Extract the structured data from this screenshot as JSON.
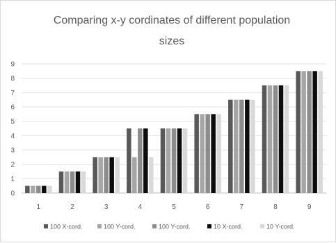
{
  "chart_data": {
    "type": "bar",
    "title_line1": "Comparing x-y cordinates of different population",
    "title_line2": "sizes",
    "categories": [
      "1",
      "2",
      "3",
      "4",
      "5",
      "6",
      "7",
      "8",
      "9"
    ],
    "ylim": [
      0,
      9
    ],
    "yticks": [
      "0",
      "1",
      "2",
      "3",
      "4",
      "5",
      "6",
      "7",
      "8",
      "9"
    ],
    "grid": true,
    "legend_position": "bottom",
    "series": [
      {
        "name": "100 X-cord.",
        "color": "#595959",
        "values": [
          0.5,
          1.5,
          2.5,
          4.5,
          4.5,
          5.5,
          6.5,
          7.5,
          8.5
        ]
      },
      {
        "name": "100 Y-cord.",
        "color": "#a6a6a6",
        "values": [
          0.5,
          1.5,
          2.5,
          2.5,
          4.5,
          5.5,
          6.5,
          7.5,
          8.5
        ]
      },
      {
        "name": "100 Y-cord.",
        "color": "#8c8c8c",
        "values": [
          0.5,
          1.5,
          2.5,
          4.5,
          4.5,
          5.5,
          6.5,
          7.5,
          8.5
        ]
      },
      {
        "name": "10 X-cord.",
        "color": "#0d0d0d",
        "values": [
          0.5,
          1.5,
          2.5,
          4.5,
          4.5,
          5.5,
          6.5,
          7.5,
          8.5
        ]
      },
      {
        "name": "10 Y-cord.",
        "color": "#d9d9d9",
        "values": [
          0.5,
          1.5,
          2.5,
          2.5,
          4.5,
          5.5,
          6.5,
          7.5,
          8.5
        ]
      }
    ]
  }
}
